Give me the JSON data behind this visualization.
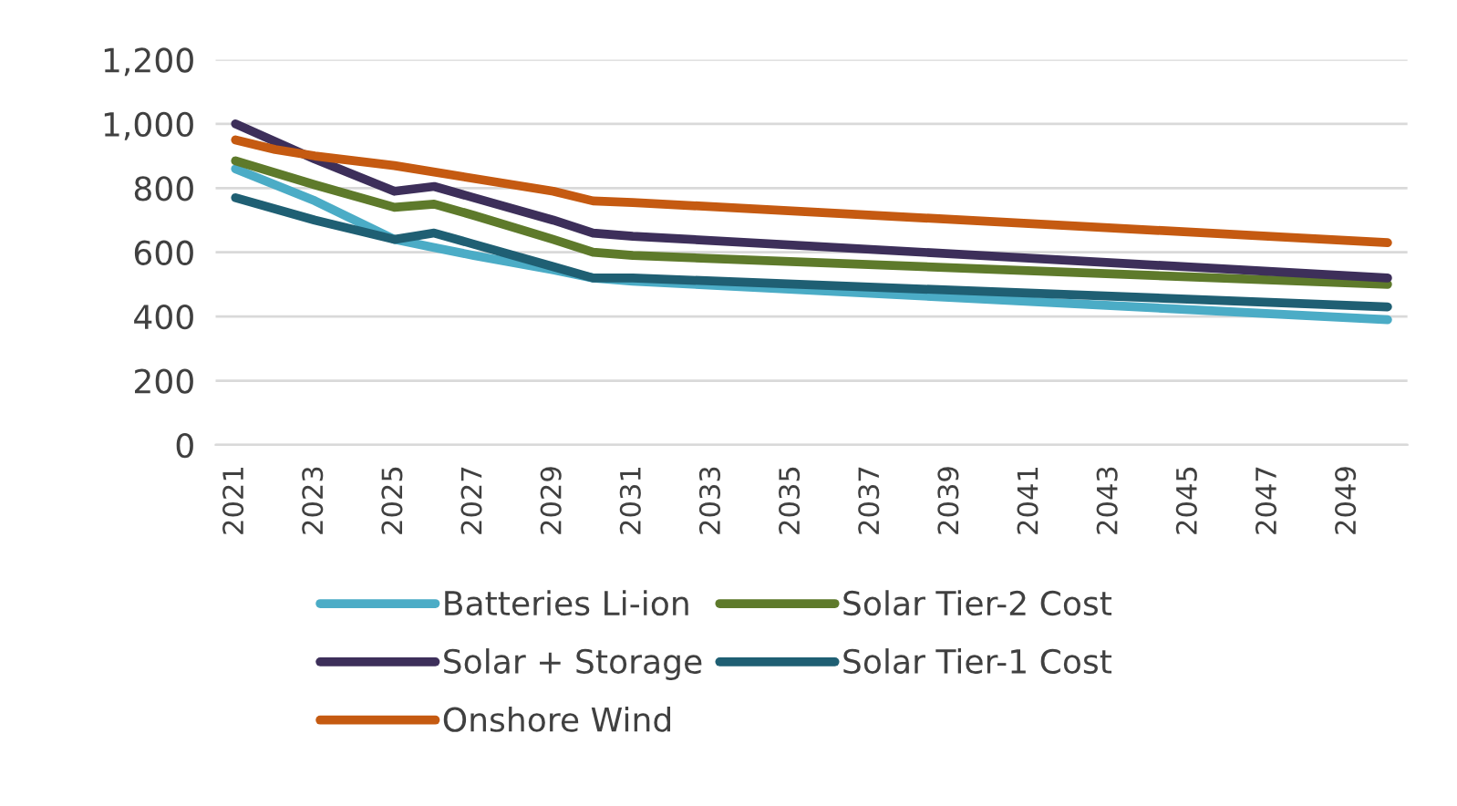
{
  "chart_data": {
    "type": "line",
    "xlim": [
      2020.5,
      2050.5
    ],
    "xticks": [
      2021,
      2023,
      2025,
      2027,
      2029,
      2031,
      2033,
      2035,
      2037,
      2039,
      2041,
      2043,
      2045,
      2047,
      2049
    ],
    "ylim": [
      0,
      1200
    ],
    "yticks": [
      0,
      200,
      400,
      600,
      800,
      {
        "value": 1000,
        "label": "1,000"
      },
      {
        "value": 1200,
        "label": "1,200"
      }
    ],
    "grid": "y",
    "legend": "bottom",
    "marker": "none",
    "line_style": "solid",
    "series": [
      {
        "name": "Batteries Li-ion",
        "color": "#4bacc6",
        "x": [
          2021,
          2023,
          2025,
          2026,
          2027,
          2029,
          2030,
          2031,
          2050
        ],
        "values": [
          860,
          760,
          640,
          615,
          590,
          545,
          520,
          510,
          390
        ]
      },
      {
        "name": "Solar Tier-2 Cost",
        "color": "#5e7a2b",
        "x": [
          2021,
          2023,
          2025,
          2026,
          2027,
          2029,
          2030,
          2031,
          2050
        ],
        "values": [
          885,
          810,
          740,
          750,
          715,
          640,
          600,
          590,
          500
        ]
      },
      {
        "name": "Solar + Storage",
        "color": "#3d2f5a",
        "x": [
          2021,
          2023,
          2025,
          2026,
          2027,
          2029,
          2030,
          2031,
          2050
        ],
        "values": [
          1000,
          890,
          790,
          805,
          770,
          700,
          660,
          650,
          520
        ]
      },
      {
        "name": "Solar Tier-1 Cost",
        "color": "#1f5f73",
        "x": [
          2021,
          2023,
          2025,
          2026,
          2027,
          2029,
          2030,
          2031,
          2050
        ],
        "values": [
          770,
          700,
          640,
          660,
          625,
          555,
          520,
          520,
          430
        ]
      },
      {
        "name": "Onshore Wind",
        "color": "#c55a11",
        "x": [
          2021,
          2022,
          2023,
          2025,
          2027,
          2029,
          2030,
          2031,
          2050
        ],
        "values": [
          950,
          920,
          900,
          870,
          830,
          790,
          760,
          755,
          630
        ]
      }
    ]
  }
}
